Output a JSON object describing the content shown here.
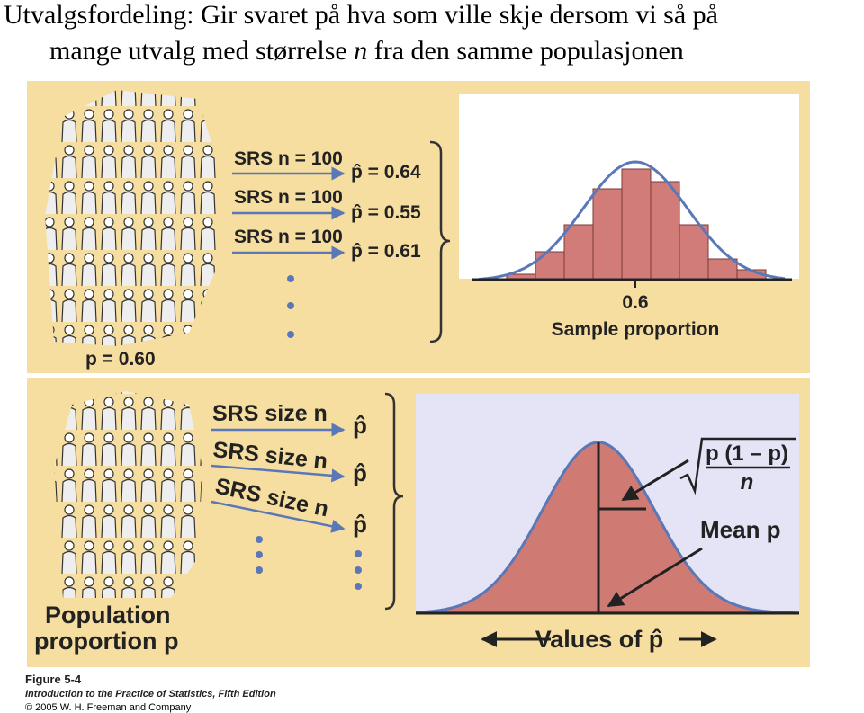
{
  "title": {
    "line1": "Utvalgsfordeling: Gir svaret på hva som ville skje dersom vi så på",
    "line2_a": "mange utvalg med størrelse ",
    "line2_n": "n",
    "line2_b": " fra den samme populasjonen"
  },
  "top_panel": {
    "samples": [
      "SRS n = 100",
      "SRS n = 100",
      "SRS n = 100"
    ],
    "estimates": [
      "p̂ = 0.64",
      "p̂ = 0.55",
      "p̂ = 0.61"
    ],
    "population": "p = 0.60",
    "axis_tick": "0.6",
    "axis_label": "Sample proportion"
  },
  "bottom_panel": {
    "samples": [
      "SRS size n",
      "SRS size n",
      "SRS size n"
    ],
    "estimates": [
      "p̂",
      "p̂",
      "p̂"
    ],
    "population_line1": "Population",
    "population_line2": "proportion p",
    "sd_numerator": "p (1 – p)",
    "sd_denominator": "n",
    "mean_label": "Mean p",
    "axis_label": "Values of p̂"
  },
  "footer": {
    "figure": "Figure 5-4",
    "book": "Introduction to the Practice of Statistics, Fifth Edition",
    "copyright": "© 2005 W. H. Freeman and Company"
  }
}
